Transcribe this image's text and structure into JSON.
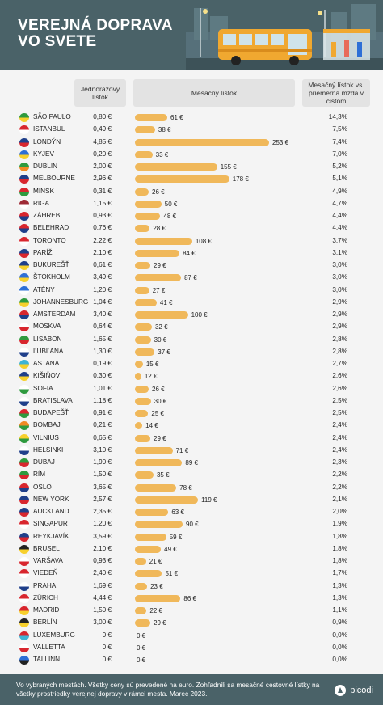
{
  "header": {
    "title_line1": "VEREJNÁ DOPRAVA",
    "title_line2": "VO SVETE"
  },
  "columns": {
    "single": "Jednorázový lístok",
    "monthly": "Mesačný lístok",
    "ratio": "Mesačný lístok vs. priemerná mzda v čistom"
  },
  "footer": {
    "note": "Vo vybraných mestách. Všetky ceny sú prevedené na euro. Zohľadnili sa mesačné cestovné lístky na všetky prostriedky verejnej dopravy v rámci mesta. Marec 2023.",
    "brand": "picodi"
  },
  "colors": {
    "header_bg": "#4a6268",
    "bar": "#f0b85a"
  },
  "chart_data": {
    "type": "bar",
    "orientation": "horizontal",
    "categories": [
      "SÃO PAULO",
      "ISTANBUL",
      "LONDÝN",
      "KYJEV",
      "DUBLIN",
      "MELBOURNE",
      "MINSK",
      "RIGA",
      "ZÁHREB",
      "BELEHRAD",
      "TORONTO",
      "PARÍŽ",
      "BUKUREŠŤ",
      "ŠTOKHOLM",
      "ATÉNY",
      "JOHANNESBURG",
      "AMSTERDAM",
      "MOSKVA",
      "LISABON",
      "ĽUBĽANA",
      "ASTANA",
      "KIŠIŇOV",
      "SOFIA",
      "BRATISLAVA",
      "BUDAPEŠŤ",
      "BOMBAJ",
      "VILNIUS",
      "HELSINKI",
      "DUBAJ",
      "RÍM",
      "OSLO",
      "NEW YORK",
      "AUCKLAND",
      "SINGAPUR",
      "REYKJAVÍK",
      "BRUSEL",
      "VARŠAVA",
      "VIEDEŇ",
      "PRAHA",
      "ZÜRICH",
      "MADRID",
      "BERLÍN",
      "LUXEMBURG",
      "VALLETTA",
      "TALLINN"
    ],
    "single_ticket_labels": [
      "0,80 €",
      "0,49 €",
      "4,85 €",
      "0,20 €",
      "2,00 €",
      "2,96 €",
      "0,31 €",
      "1,15 €",
      "0,93 €",
      "0,76 €",
      "2,22 €",
      "2,10 €",
      "0,61 €",
      "3,49 €",
      "1,20 €",
      "1,04 €",
      "3,40 €",
      "0,64 €",
      "1,65 €",
      "1,30 €",
      "0,19 €",
      "0,30 €",
      "1,01 €",
      "1,18 €",
      "0,91 €",
      "0,21 €",
      "0,65 €",
      "3,10 €",
      "1,90 €",
      "1,50 €",
      "3,65 €",
      "2,57 €",
      "2,35 €",
      "1,20 €",
      "3,59 €",
      "2,10 €",
      "0,93 €",
      "2,40 €",
      "1,69 €",
      "4,44 €",
      "1,50 €",
      "3,00 €",
      "0 €",
      "0 €",
      "0 €"
    ],
    "series": [
      {
        "name": "Mesačný lístok",
        "values": [
          61,
          38,
          253,
          33,
          155,
          178,
          26,
          50,
          48,
          28,
          108,
          84,
          29,
          87,
          27,
          41,
          100,
          32,
          30,
          37,
          15,
          12,
          26,
          30,
          25,
          14,
          29,
          71,
          89,
          35,
          78,
          119,
          63,
          90,
          59,
          49,
          21,
          51,
          23,
          86,
          22,
          29,
          0,
          0,
          0
        ],
        "labels": [
          "61 €",
          "38 €",
          "253 €",
          "33 €",
          "155 €",
          "178 €",
          "26 €",
          "50 €",
          "48 €",
          "28 €",
          "108 €",
          "84 €",
          "29 €",
          "87 €",
          "27 €",
          "41 €",
          "100 €",
          "32 €",
          "30 €",
          "37 €",
          "15 €",
          "12 €",
          "26 €",
          "30 €",
          "25 €",
          "14 €",
          "29 €",
          "71 €",
          "89 €",
          "35 €",
          "78 €",
          "119 €",
          "63 €",
          "90 €",
          "59 €",
          "49 €",
          "21 €",
          "51 €",
          "23 €",
          "86 €",
          "22 €",
          "29 €",
          "0 €",
          "0 €",
          "0 €"
        ]
      }
    ],
    "ratio_labels": [
      "14,3%",
      "7,5%",
      "7,4%",
      "7,0%",
      "5,2%",
      "5,1%",
      "4,9%",
      "4,7%",
      "4,4%",
      "4,4%",
      "3,7%",
      "3,1%",
      "3,0%",
      "3,0%",
      "3,0%",
      "2,9%",
      "2,9%",
      "2,9%",
      "2,8%",
      "2,8%",
      "2,7%",
      "2,6%",
      "2,6%",
      "2,5%",
      "2,5%",
      "2,4%",
      "2,4%",
      "2,4%",
      "2,3%",
      "2,2%",
      "2,2%",
      "2,1%",
      "2,0%",
      "1,9%",
      "1,8%",
      "1,8%",
      "1,8%",
      "1,7%",
      "1,3%",
      "1,3%",
      "1,1%",
      "0,9%",
      "0,0%",
      "0,0%",
      "0,0%"
    ],
    "flag_colors": [
      [
        "#2e9a3e",
        "#f7d02c"
      ],
      [
        "#d8262e",
        "#ffffff"
      ],
      [
        "#1f3f8a",
        "#d8262e"
      ],
      [
        "#2d6fd6",
        "#f7d02c"
      ],
      [
        "#2e9a3e",
        "#f08a24"
      ],
      [
        "#1f3f8a",
        "#d8262e"
      ],
      [
        "#d8262e",
        "#2e9a3e"
      ],
      [
        "#9e2a35",
        "#ffffff"
      ],
      [
        "#d8262e",
        "#1f3f8a"
      ],
      [
        "#d8262e",
        "#1f3f8a"
      ],
      [
        "#d8262e",
        "#ffffff"
      ],
      [
        "#1f3f8a",
        "#d8262e"
      ],
      [
        "#1f3f8a",
        "#f7d02c"
      ],
      [
        "#2d6fd6",
        "#f7d02c"
      ],
      [
        "#2d6fd6",
        "#ffffff"
      ],
      [
        "#2e9a3e",
        "#f7d02c"
      ],
      [
        "#d8262e",
        "#1f3f8a"
      ],
      [
        "#ffffff",
        "#d8262e"
      ],
      [
        "#2e9a3e",
        "#d8262e"
      ],
      [
        "#ffffff",
        "#1f3f8a"
      ],
      [
        "#3fb4d6",
        "#f7d02c"
      ],
      [
        "#1f3f8a",
        "#f7d02c"
      ],
      [
        "#ffffff",
        "#2e9a3e"
      ],
      [
        "#ffffff",
        "#1f3f8a"
      ],
      [
        "#d8262e",
        "#2e9a3e"
      ],
      [
        "#f08a24",
        "#2e9a3e"
      ],
      [
        "#f7d02c",
        "#2e9a3e"
      ],
      [
        "#ffffff",
        "#1f3f8a"
      ],
      [
        "#2e9a3e",
        "#d8262e"
      ],
      [
        "#2e9a3e",
        "#d8262e"
      ],
      [
        "#d8262e",
        "#1f3f8a"
      ],
      [
        "#1f3f8a",
        "#d8262e"
      ],
      [
        "#1f3f8a",
        "#d8262e"
      ],
      [
        "#d8262e",
        "#ffffff"
      ],
      [
        "#1f3f8a",
        "#d8262e"
      ],
      [
        "#222222",
        "#f7d02c"
      ],
      [
        "#ffffff",
        "#d8262e"
      ],
      [
        "#d8262e",
        "#ffffff"
      ],
      [
        "#ffffff",
        "#1f3f8a"
      ],
      [
        "#d8262e",
        "#ffffff"
      ],
      [
        "#d8262e",
        "#f7d02c"
      ],
      [
        "#222222",
        "#f7d02c"
      ],
      [
        "#d8262e",
        "#3fb4d6"
      ],
      [
        "#ffffff",
        "#d8262e"
      ],
      [
        "#2d6fd6",
        "#222222"
      ]
    ],
    "xlim": [
      0,
      253
    ]
  }
}
